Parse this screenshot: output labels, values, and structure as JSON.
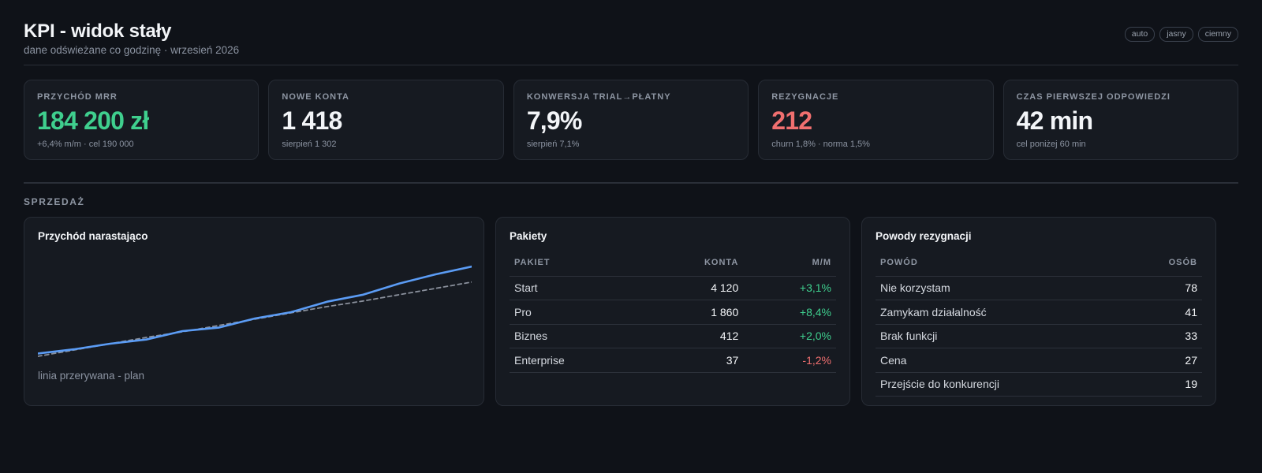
{
  "header": {
    "title": "KPI - widok stały",
    "subtitle": "dane odświeżane co godzinę · wrzesień 2026",
    "theme_options": [
      "auto",
      "jasny",
      "ciemny"
    ]
  },
  "kpis": [
    {
      "label": "Przychód MRR",
      "value": "184 200 zł",
      "note": "+6,4% m/m · cel 190 000",
      "accent": "#3fcf8e"
    },
    {
      "label": "Nowe konta",
      "value": "1 418",
      "note": "sierpień 1 302",
      "accent": "#f3f5f8"
    },
    {
      "label": "Konwersja trial→płatny",
      "value": "7,9%",
      "note": "sierpień 7,1%",
      "accent": "#f3f5f8"
    },
    {
      "label": "Rezygnacje",
      "value": "212",
      "note": "churn 1,8% · norma 1,5%",
      "accent": "#f06f6f"
    },
    {
      "label": "Czas pierwszej odpowiedzi",
      "value": "42 min",
      "note": "cel poniżej 60 min",
      "accent": "#f3f5f8"
    }
  ],
  "section": {
    "label": "Sprzedaż"
  },
  "revenue_panel": {
    "title": "Przychód narastająco",
    "caption": "linia przerywana - plan"
  },
  "chart_data": {
    "type": "line",
    "title": "Przychód narastająco",
    "x": [
      1,
      2,
      3,
      4,
      5,
      6,
      7,
      8,
      9,
      10,
      11,
      12,
      13
    ],
    "series": [
      {
        "name": "",
        "style": "solid",
        "color": "#5b9cf5",
        "values": [
          4,
          10,
          18,
          24,
          36,
          41,
          54,
          63,
          78,
          88,
          104,
          117,
          128
        ]
      },
      {
        "name": "",
        "style": "dashed",
        "color": "#8a909c",
        "values": [
          0,
          9,
          18,
          27,
          35,
          44,
          53,
          62,
          71,
          79,
          88,
          97,
          106
        ]
      }
    ],
    "ylim": [
      0,
      135
    ],
    "grid": false,
    "legend": "none"
  },
  "packages_panel": {
    "title": "Pakiety",
    "columns": [
      "Pakiet",
      "Konta",
      "M/M"
    ],
    "rows": [
      {
        "name": "Start",
        "accounts": "4 120",
        "change": "+3,1%",
        "trend": "up"
      },
      {
        "name": "Pro",
        "accounts": "1 860",
        "change": "+8,4%",
        "trend": "up"
      },
      {
        "name": "Biznes",
        "accounts": "412",
        "change": "+2,0%",
        "trend": "up"
      },
      {
        "name": "Enterprise",
        "accounts": "37",
        "change": "-1,2%",
        "trend": "down"
      }
    ]
  },
  "reasons_panel": {
    "title": "Powody rezygnacji",
    "columns": [
      "Powód",
      "Osób"
    ],
    "rows": [
      {
        "reason": "Nie korzystam",
        "count": "78"
      },
      {
        "reason": "Zamykam działalność",
        "count": "41"
      },
      {
        "reason": "Brak funkcji",
        "count": "33"
      },
      {
        "reason": "Cena",
        "count": "27"
      },
      {
        "reason": "Przejście do konkurencji",
        "count": "19"
      }
    ]
  }
}
